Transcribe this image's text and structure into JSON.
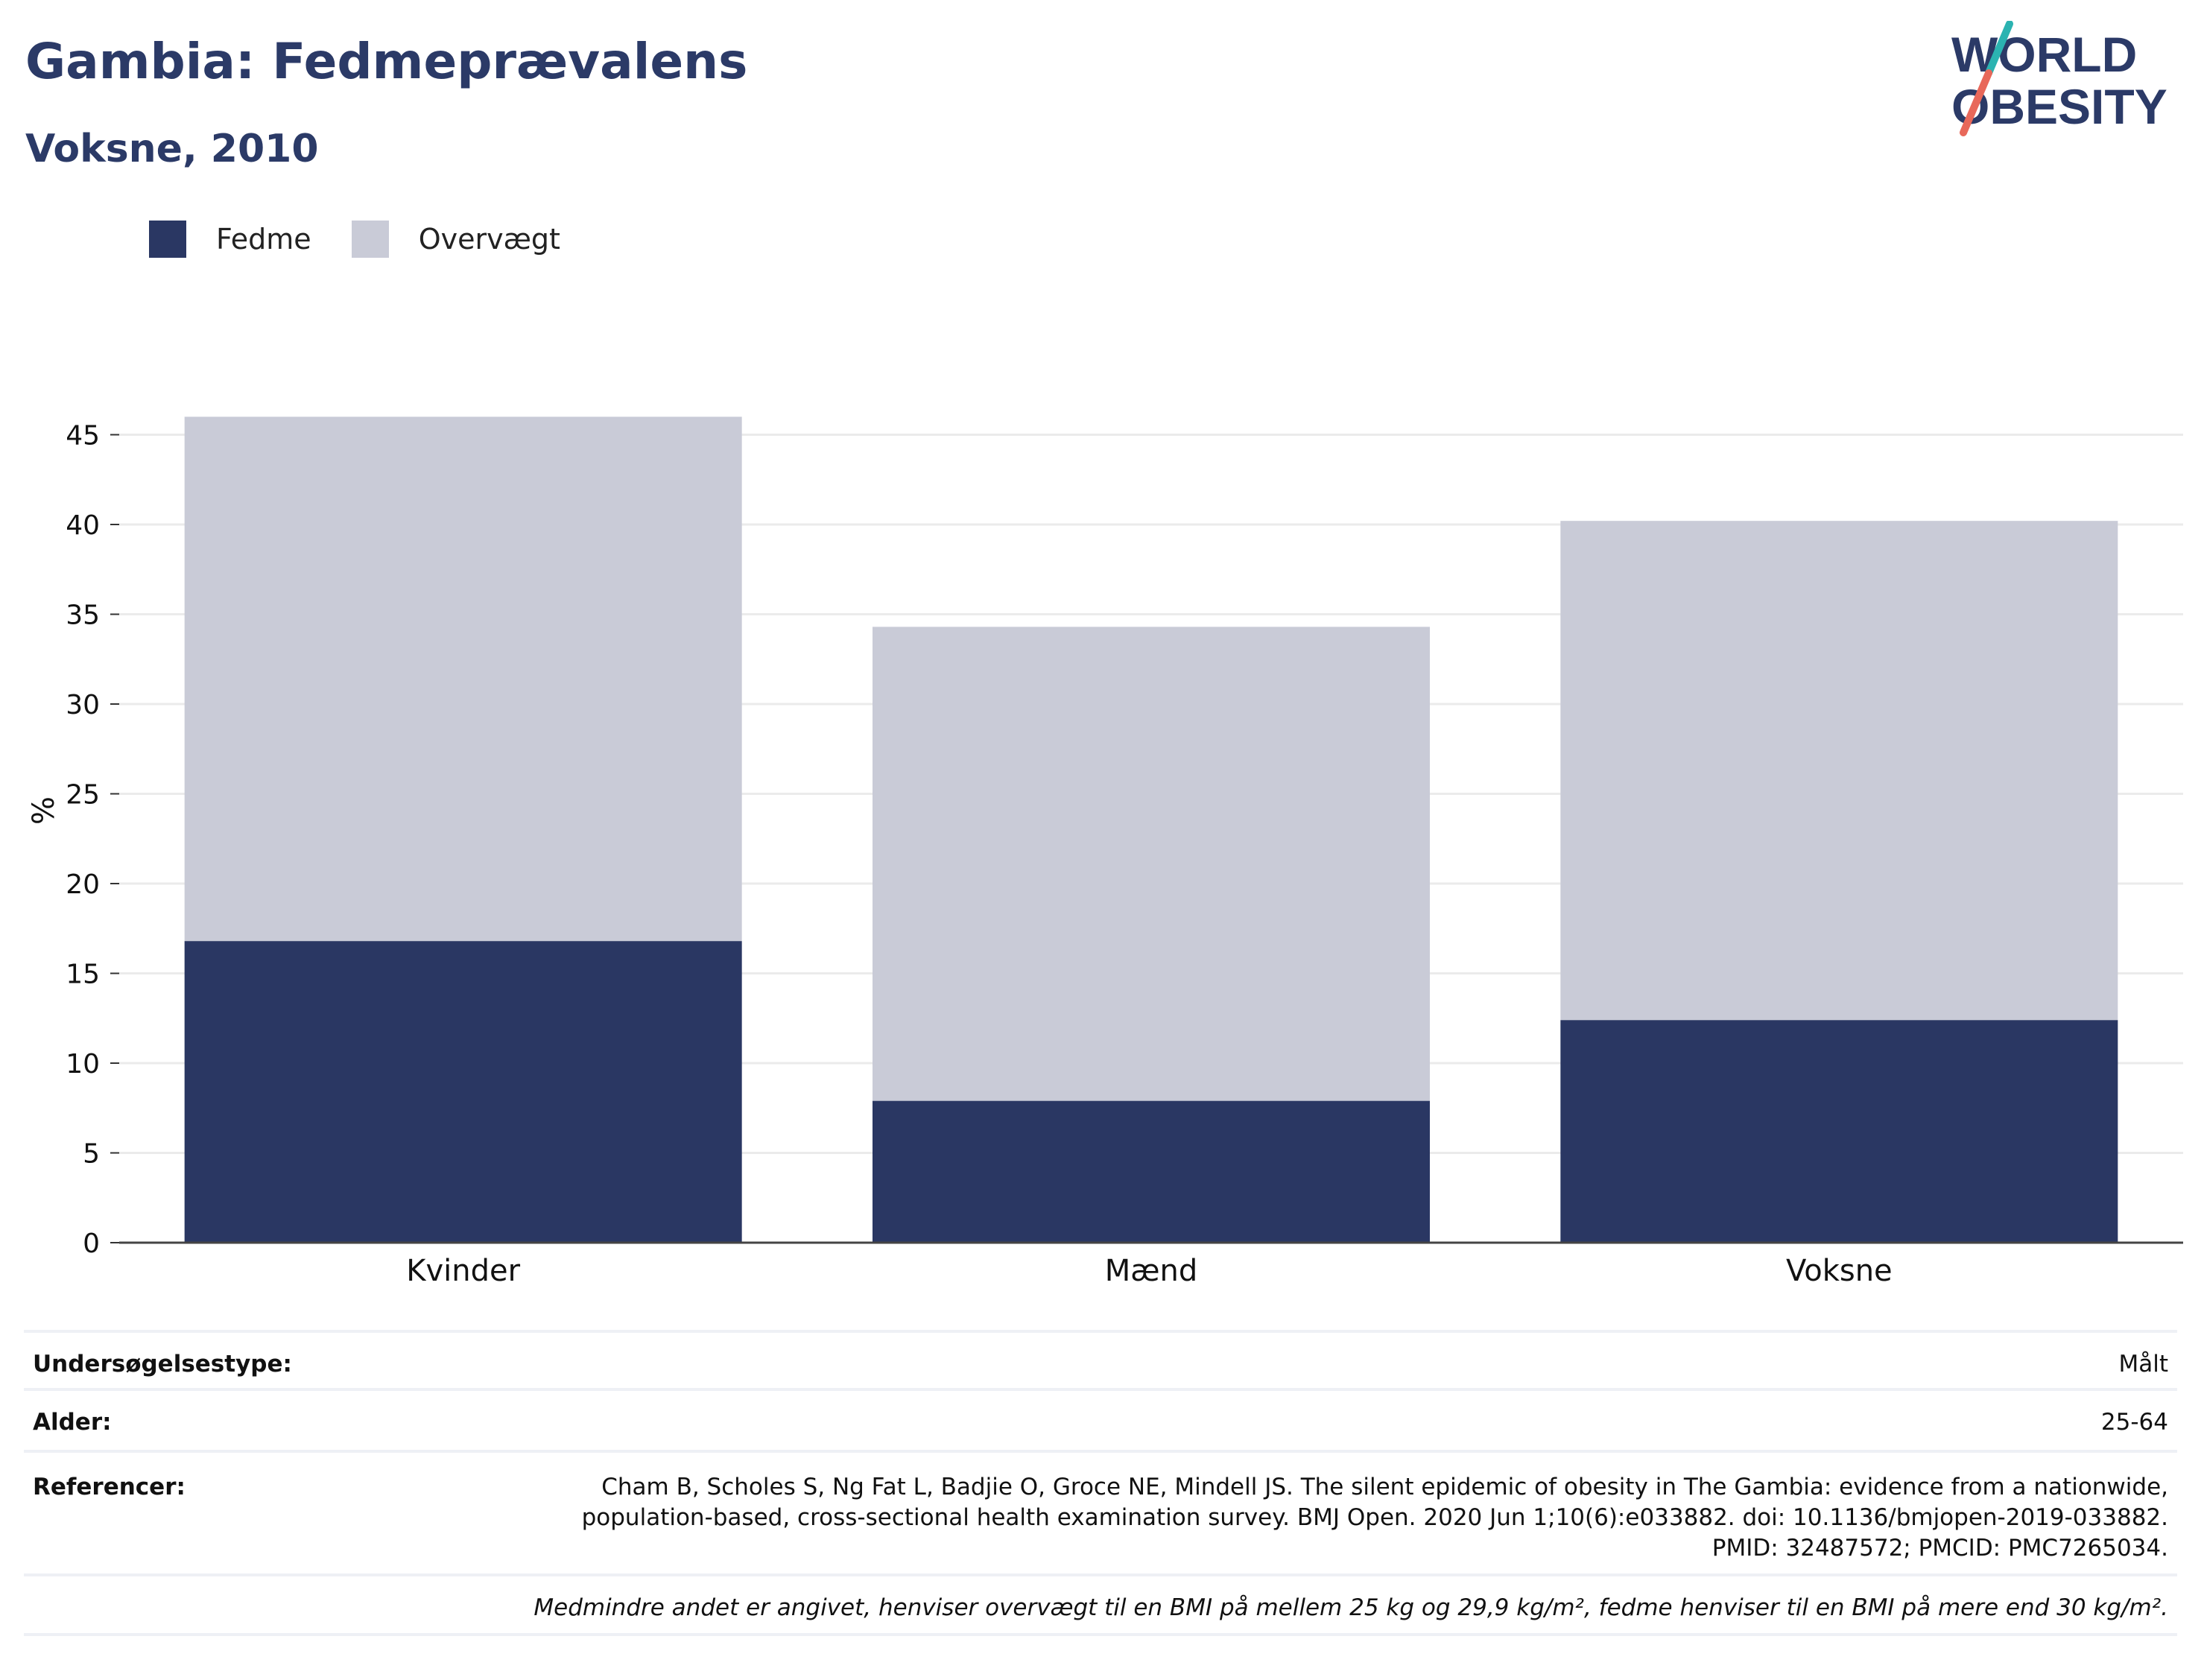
{
  "header": {
    "title": "Gambia: Fedmeprævalens",
    "subtitle": "Voksne, 2010"
  },
  "logo": {
    "line1": "WORLD",
    "line2": "OBESITY",
    "colors": {
      "text": "#2b3a67",
      "slash_top": "#2bb3b1",
      "slash_bottom": "#e8685a"
    }
  },
  "legend": [
    {
      "label": "Fedme",
      "color": "#2a3763"
    },
    {
      "label": "Overvægt",
      "color": "#c9cbd7"
    }
  ],
  "chart_data": {
    "type": "bar",
    "stacked": true,
    "categories": [
      "Kvinder",
      "Mænd",
      "Voksne"
    ],
    "series": [
      {
        "name": "Fedme",
        "color": "#2a3763",
        "values": [
          16.8,
          7.9,
          12.4
        ]
      },
      {
        "name": "Overvægt",
        "color": "#c9cbd7",
        "values": [
          29.2,
          26.4,
          27.8
        ]
      }
    ],
    "ylabel": "%",
    "ylim": [
      0,
      46
    ],
    "yticks": [
      0,
      5,
      10,
      15,
      20,
      25,
      30,
      35,
      40,
      45
    ],
    "grid": true
  },
  "info": {
    "rows": [
      {
        "key": "Undersøgelsestype:",
        "value": "Målt"
      },
      {
        "key": "Alder:",
        "value": "25-64"
      },
      {
        "key": "Referencer:",
        "value": "Cham B, Scholes S, Ng Fat L, Badjie O, Groce NE, Mindell JS. The silent epidemic of obesity in The Gambia: evidence from a nationwide, population-based, cross-sectional health examination survey. BMJ Open. 2020 Jun 1;10(6):e033882. doi: 10.1136/bmjopen-2019-033882. PMID: 32487572; PMCID: PMC7265034."
      }
    ],
    "footnote": "Medmindre andet er angivet, henviser overvægt til en BMI på mellem 25 kg og 29,9 kg/m², fedme henviser til en BMI på mere end 30 kg/m²."
  }
}
